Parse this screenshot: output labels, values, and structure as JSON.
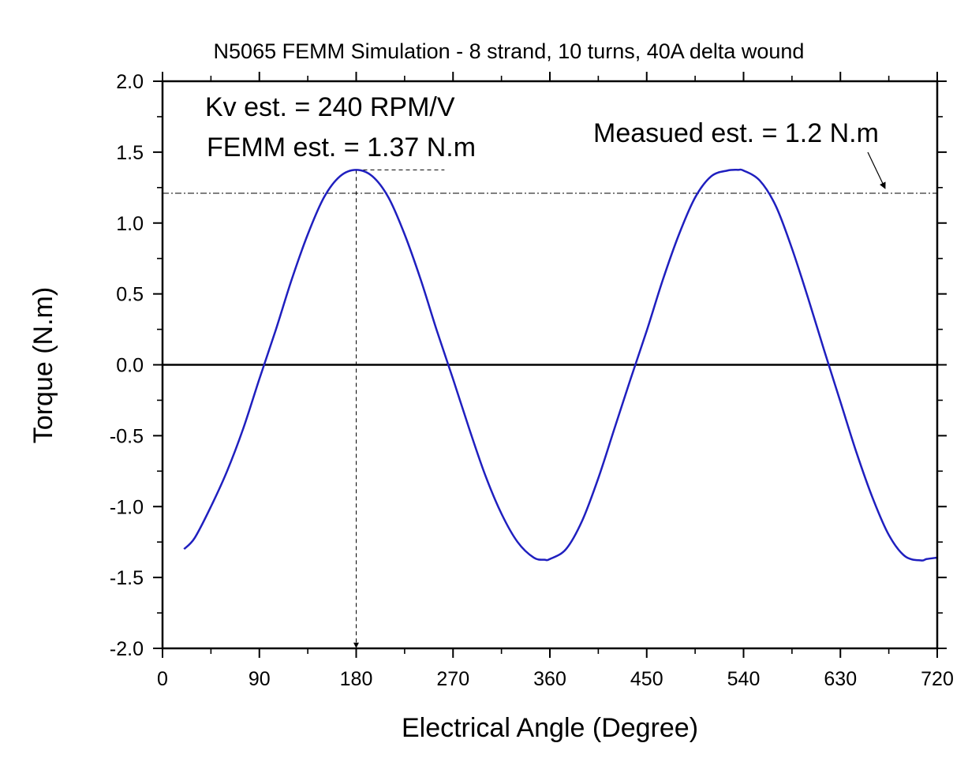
{
  "chart_data": {
    "type": "line",
    "title": "N5065 FEMM Simulation - 8 strand, 10 turns, 40A delta wound",
    "xlabel": "Electrical Angle (Degree)",
    "ylabel": "Torque (N.m)",
    "xlim": [
      0,
      720
    ],
    "ylim": [
      -2.0,
      2.0
    ],
    "xticks": [
      0,
      90,
      180,
      270,
      360,
      450,
      540,
      630,
      720
    ],
    "xtick_labels": [
      "0",
      "90",
      "180",
      "270",
      "360",
      "450",
      "540",
      "630",
      "720"
    ],
    "yticks": [
      2.0,
      1.5,
      1.0,
      0.5,
      0.0,
      -0.5,
      -1.0,
      -1.5,
      -2.0
    ],
    "ytick_labels": [
      "2.0",
      "1.5",
      "1.0",
      "0.5",
      "0.0",
      "-0.5",
      "-1.0",
      "-1.5",
      "-2.0"
    ],
    "grid": false,
    "zero_line": 0.0,
    "series": [
      {
        "color": "#1f1fbf",
        "x": [
          20,
          30,
          45,
          60,
          75,
          90,
          105,
          120,
          135,
          150,
          165,
          180,
          195,
          210,
          225,
          240,
          255,
          270,
          285,
          300,
          315,
          330,
          345,
          355,
          360,
          375,
          390,
          405,
          420,
          435,
          450,
          465,
          480,
          495,
          510,
          525,
          535,
          540,
          555,
          570,
          585,
          600,
          615,
          630,
          645,
          660,
          675,
          690,
          705,
          710,
          720
        ],
        "y": [
          -1.3,
          -1.22,
          -1.0,
          -0.75,
          -0.45,
          -0.1,
          0.24,
          0.6,
          0.92,
          1.18,
          1.33,
          1.375,
          1.33,
          1.18,
          0.92,
          0.6,
          0.24,
          -0.1,
          -0.45,
          -0.78,
          -1.05,
          -1.25,
          -1.36,
          -1.375,
          -1.37,
          -1.3,
          -1.1,
          -0.8,
          -0.45,
          -0.1,
          0.24,
          0.6,
          0.92,
          1.18,
          1.33,
          1.37,
          1.375,
          1.37,
          1.3,
          1.12,
          0.82,
          0.47,
          0.1,
          -0.26,
          -0.62,
          -0.94,
          -1.2,
          -1.35,
          -1.38,
          -1.37,
          -1.36
        ]
      }
    ],
    "reference_lines": [
      {
        "kind": "horizontal",
        "y": 1.21,
        "x_from": 0,
        "x_to": 720,
        "style": "dash-dot"
      },
      {
        "kind": "horizontal",
        "y": 1.375,
        "x_from": 180,
        "x_to": 262,
        "style": "dashed"
      },
      {
        "kind": "vertical",
        "x": 180,
        "y_from": 1.375,
        "y_to": -2.0,
        "style": "dashed",
        "arrow": true
      }
    ],
    "annotations": [
      {
        "text": "Kv est. = 240 RPM/V"
      },
      {
        "text": "FEMM est. = 1.37 N.m"
      },
      {
        "text": "Measued est. = 1.2 N.m"
      }
    ]
  }
}
